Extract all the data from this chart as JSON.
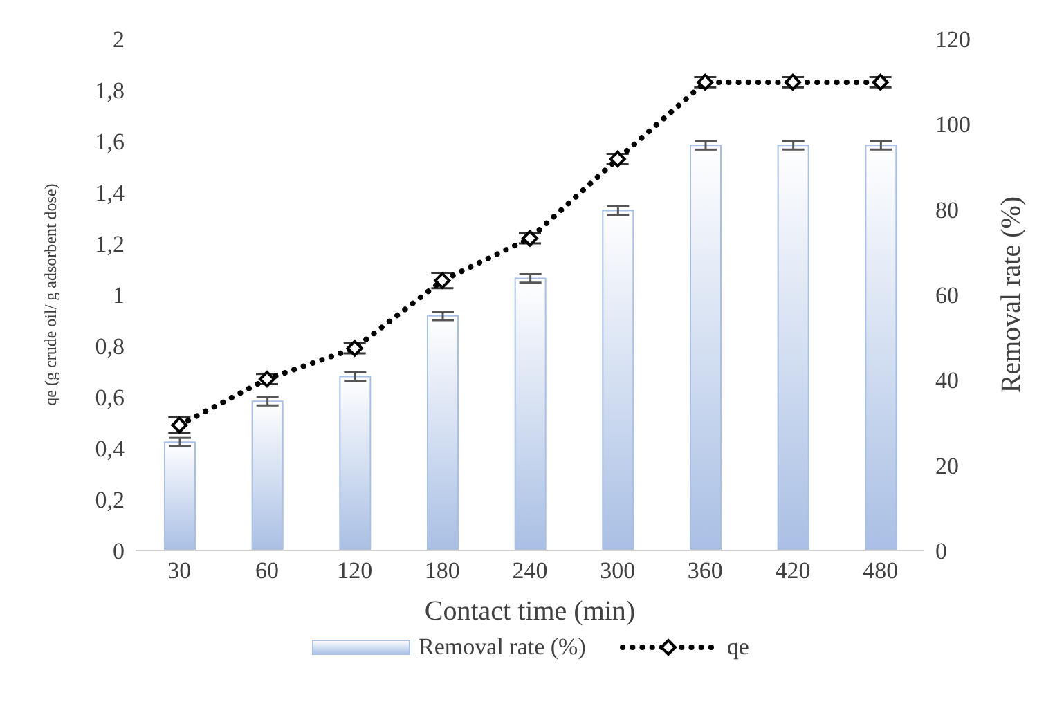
{
  "chart_data": {
    "type": "bar",
    "xlabel": "Contact time (min)",
    "ylabel": "qe (g crude oil/ g adsorbent dose)",
    "y2label": "Removal rate (%)",
    "categories": [
      "30",
      "60",
      "120",
      "180",
      "240",
      "300",
      "360",
      "420",
      "480"
    ],
    "series": [
      {
        "name": "Removal rate (%)",
        "axis": "y2",
        "color": "#a9bfe4",
        "values": [
          25.4,
          35,
          40.8,
          55,
          63.8,
          79.7,
          95,
          95,
          95
        ],
        "errors": [
          1,
          1,
          1,
          1,
          1,
          1,
          1,
          1,
          1
        ]
      },
      {
        "name": "qe",
        "type": "line",
        "axis": "y",
        "color": "#000000",
        "marker": "diamond",
        "line_style": "dotted",
        "values": [
          0.49,
          0.67,
          0.79,
          1.055,
          1.22,
          1.53,
          1.83,
          1.83,
          1.83
        ],
        "errors": [
          0.03,
          0.02,
          0.02,
          0.03,
          0.02,
          0.02,
          0.02,
          0.02,
          0.02
        ]
      }
    ],
    "ylim": [
      0,
      2
    ],
    "yticks": [
      0,
      {
        "value": 0.2,
        "label": "0,2"
      },
      {
        "value": 0.4,
        "label": "0,4"
      },
      {
        "value": 0.6,
        "label": "0,6"
      },
      {
        "value": 0.8,
        "label": "0,8"
      },
      1,
      {
        "value": 1.2,
        "label": "1,2"
      },
      {
        "value": 1.4,
        "label": "1,4"
      },
      {
        "value": 1.6,
        "label": "1,6"
      },
      {
        "value": 1.8,
        "label": "1,8"
      },
      2
    ],
    "y2lim": [
      0,
      120
    ],
    "y2ticks": [
      0,
      20,
      40,
      60,
      80,
      100,
      120
    ],
    "grid": false,
    "legend": "bottom"
  }
}
